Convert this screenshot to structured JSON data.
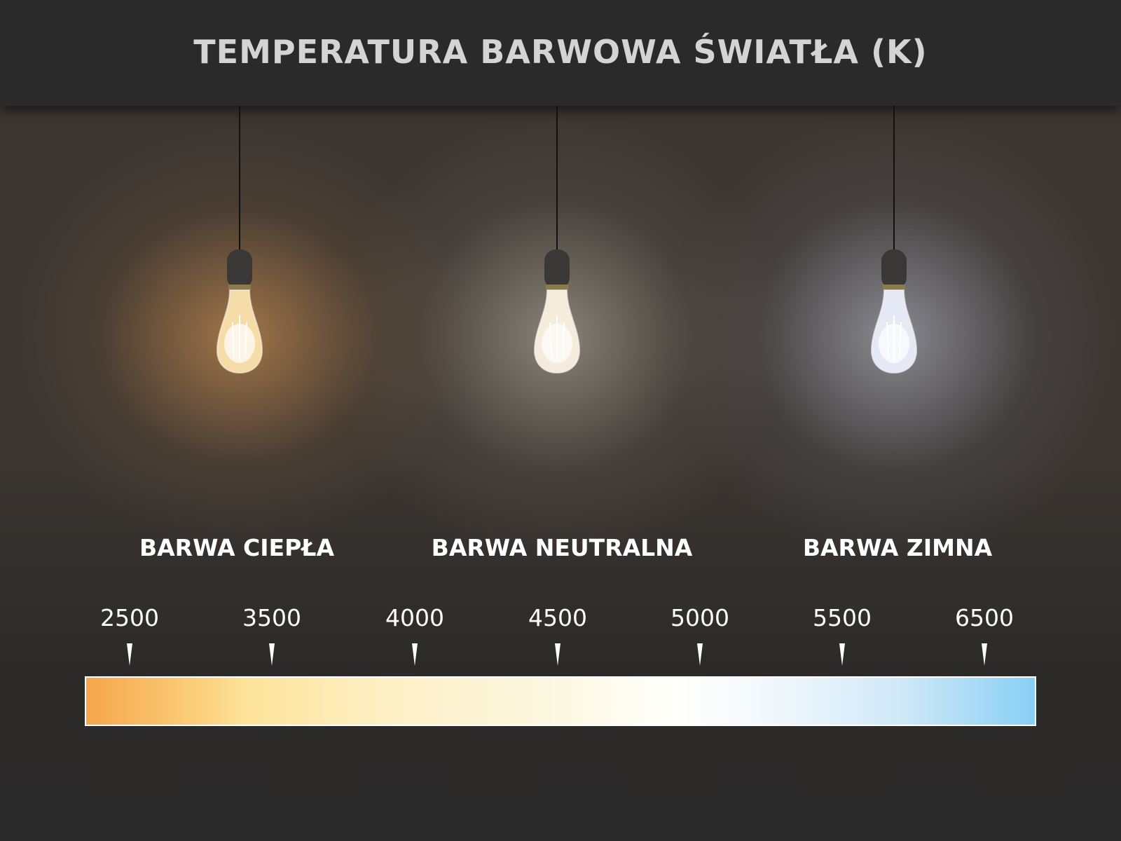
{
  "title": "TEMPERATURA BARWOWA ŚWIATŁA (K)",
  "bulbs": [
    {
      "label": "BARWA CIEPŁA",
      "glow_color": "#f7b86a"
    },
    {
      "label": "BARWA NEUTRALNA",
      "glow_color": "#f3ead8"
    },
    {
      "label": "BARWA ZIMNA",
      "glow_color": "#e2e8f6"
    }
  ],
  "scale": {
    "ticks": [
      "2500",
      "3500",
      "4000",
      "4500",
      "5000",
      "5500",
      "6500"
    ],
    "gradient_start": "#f6a64b",
    "gradient_mid": "#ffffff",
    "gradient_end": "#88d0f4"
  }
}
